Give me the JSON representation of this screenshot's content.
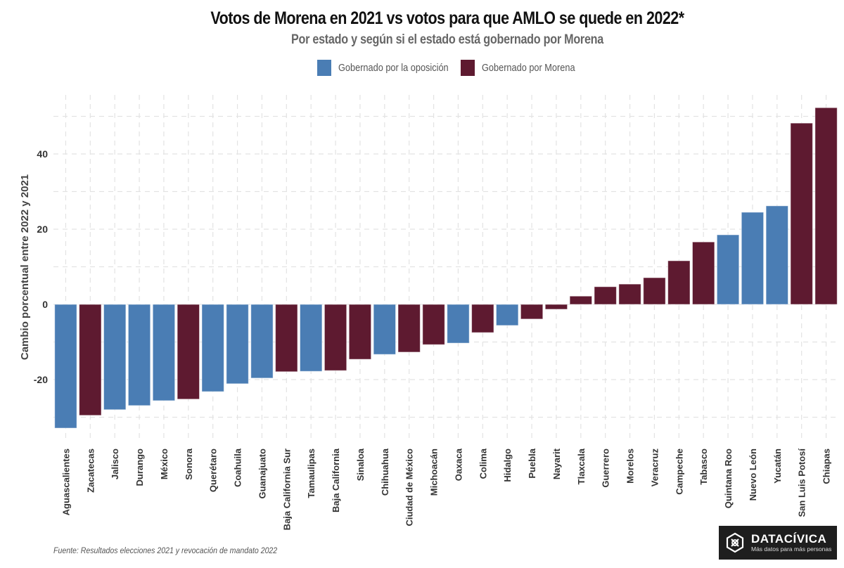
{
  "header": {
    "title": "Votos de Morena en 2021 vs votos para que AMLO se quede en 2022*",
    "subtitle": "Por estado y según si el estado está gobernado por Morena"
  },
  "legend": [
    {
      "label": "Gobernado por la oposición",
      "color": "#4A7DB4"
    },
    {
      "label": "Gobernado por Morena",
      "color": "#5E1A30"
    }
  ],
  "footer": {
    "source": "Fuente: Resultados elecciones 2021 y revocación de mandato 2022",
    "logo_name": "DATACÍVICA",
    "logo_tagline": "Más datos para más personas"
  },
  "chart_data": {
    "type": "bar",
    "title": "Votos de Morena en 2021 vs votos para que AMLO se quede en 2022*",
    "subtitle": "Por estado y según si el estado está gobernado por Morena",
    "xlabel": "",
    "ylabel": "Cambio porcentual entre 2022 y 2021",
    "ylim": [
      -36,
      56
    ],
    "yticks": [
      -20,
      0,
      20,
      40
    ],
    "grid": true,
    "legend_position": "top-center",
    "series_colors": {
      "Gobernado por la oposición": "#4A7DB4",
      "Gobernado por Morena": "#5E1A30"
    },
    "categories": [
      "Aguascalientes",
      "Zacatecas",
      "Jalisco",
      "Durango",
      "México",
      "Sonora",
      "Querétaro",
      "Coahuila",
      "Guanajuato",
      "Baja California Sur",
      "Tamaulipas",
      "Baja California",
      "Sinaloa",
      "Chihuahua",
      "Ciudad de México",
      "Michoacán",
      "Oaxaca",
      "Colima",
      "Hidalgo",
      "Puebla",
      "Nayarit",
      "Tlaxcala",
      "Guerrero",
      "Morelos",
      "Veracruz",
      "Campeche",
      "Tabasco",
      "Quintana Roo",
      "Nuevo León",
      "Yucatán",
      "San Luis Potosí",
      "Chiapas"
    ],
    "values": [
      -32.9,
      -29.5,
      -28.0,
      -26.9,
      -25.6,
      -25.2,
      -23.2,
      -21.1,
      -19.6,
      -17.9,
      -17.8,
      -17.6,
      -14.6,
      -13.3,
      -12.7,
      -10.7,
      -10.3,
      -7.5,
      -5.6,
      -3.9,
      -1.3,
      2.2,
      4.7,
      5.4,
      7.1,
      11.6,
      16.6,
      18.5,
      24.5,
      26.2,
      48.2,
      52.3
    ],
    "group": [
      "Gobernado por la oposición",
      "Gobernado por Morena",
      "Gobernado por la oposición",
      "Gobernado por la oposición",
      "Gobernado por la oposición",
      "Gobernado por Morena",
      "Gobernado por la oposición",
      "Gobernado por la oposición",
      "Gobernado por la oposición",
      "Gobernado por Morena",
      "Gobernado por la oposición",
      "Gobernado por Morena",
      "Gobernado por Morena",
      "Gobernado por la oposición",
      "Gobernado por Morena",
      "Gobernado por Morena",
      "Gobernado por la oposición",
      "Gobernado por Morena",
      "Gobernado por la oposición",
      "Gobernado por Morena",
      "Gobernado por Morena",
      "Gobernado por Morena",
      "Gobernado por Morena",
      "Gobernado por Morena",
      "Gobernado por Morena",
      "Gobernado por Morena",
      "Gobernado por Morena",
      "Gobernado por la oposición",
      "Gobernado por la oposición",
      "Gobernado por la oposición",
      "Gobernado por Morena",
      "Gobernado por Morena"
    ]
  }
}
